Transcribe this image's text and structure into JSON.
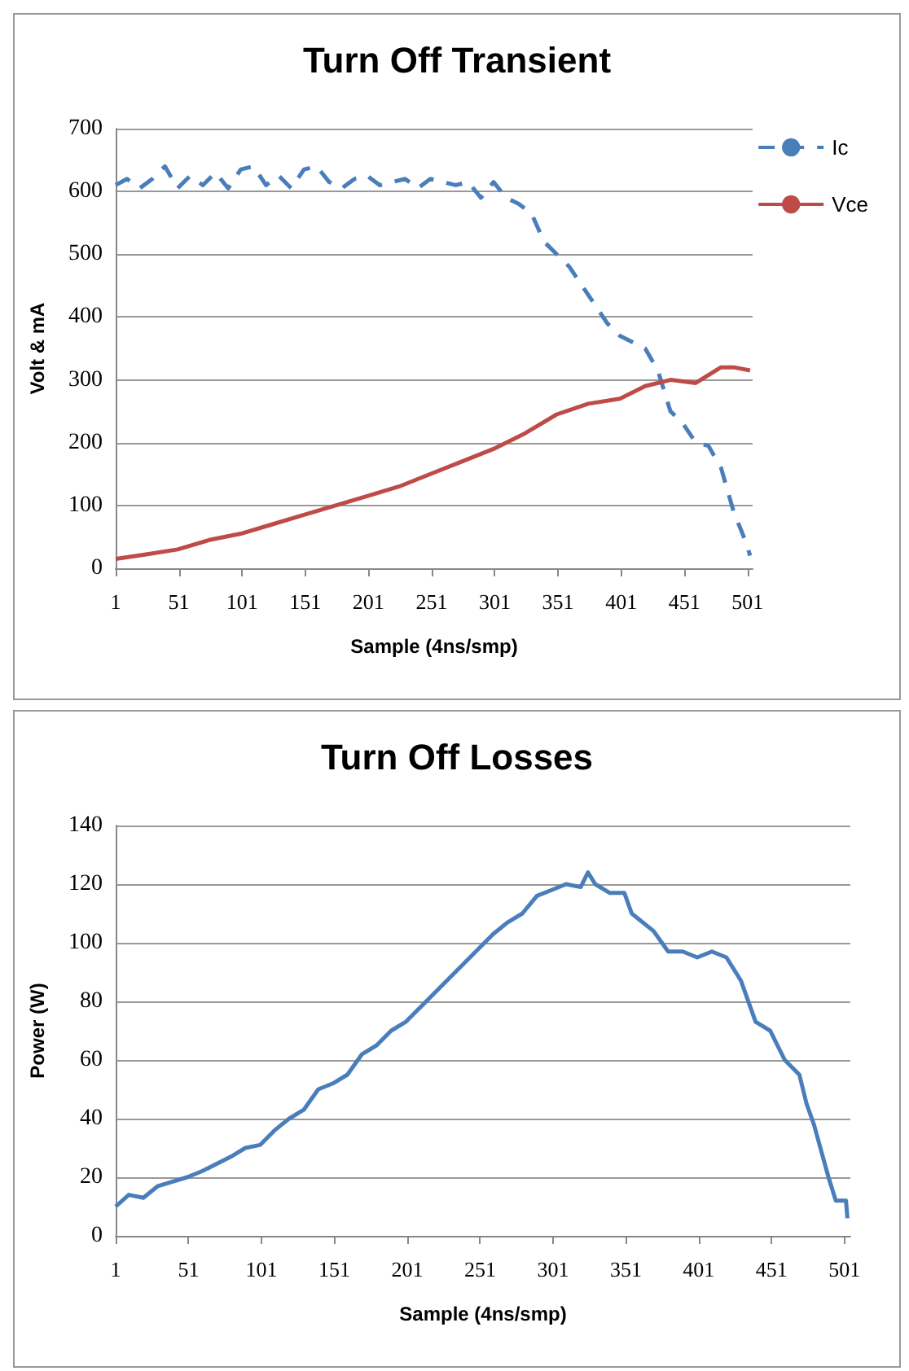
{
  "chart_data": [
    {
      "type": "line",
      "title": "Turn Off Transient",
      "xlabel": "Sample (4ns/smp)",
      "ylabel": "Volt & mA",
      "xlim": [
        1,
        505
      ],
      "xticks": [
        1,
        51,
        101,
        151,
        201,
        251,
        301,
        351,
        401,
        451,
        501
      ],
      "ylim": [
        0,
        700
      ],
      "yticks": [
        0,
        100,
        200,
        300,
        400,
        500,
        600,
        700
      ],
      "grid": "y",
      "legend": "top right",
      "marker": "none",
      "series": [
        {
          "name": "Ic",
          "color": "#4a7ebb",
          "line_style": "dashed",
          "x": [
            1,
            10,
            20,
            30,
            40,
            50,
            60,
            70,
            80,
            90,
            100,
            110,
            120,
            130,
            140,
            150,
            160,
            170,
            180,
            190,
            200,
            210,
            220,
            230,
            240,
            250,
            260,
            270,
            280,
            290,
            300,
            310,
            320,
            330,
            340,
            350,
            360,
            370,
            380,
            390,
            400,
            410,
            420,
            430,
            440,
            450,
            460,
            470,
            480,
            490,
            500,
            503
          ],
          "values": [
            610,
            620,
            605,
            620,
            640,
            605,
            625,
            610,
            630,
            605,
            635,
            640,
            610,
            625,
            605,
            635,
            640,
            615,
            605,
            620,
            625,
            610,
            615,
            620,
            605,
            620,
            615,
            610,
            615,
            590,
            615,
            590,
            580,
            565,
            520,
            500,
            480,
            450,
            420,
            390,
            370,
            360,
            350,
            315,
            250,
            230,
            200,
            195,
            160,
            90,
            40,
            20
          ]
        },
        {
          "name": "Vce",
          "color": "#be4b48",
          "line_style": "solid",
          "x": [
            1,
            25,
            50,
            75,
            100,
            125,
            150,
            175,
            200,
            225,
            250,
            275,
            300,
            325,
            350,
            375,
            400,
            420,
            440,
            460,
            480,
            490,
            503
          ],
          "values": [
            15,
            22,
            30,
            45,
            55,
            70,
            85,
            100,
            115,
            130,
            150,
            170,
            190,
            215,
            245,
            262,
            270,
            290,
            300,
            295,
            320,
            320,
            315
          ]
        }
      ]
    },
    {
      "type": "line",
      "title": "Turn Off Losses",
      "xlabel": "Sample (4ns/smp)",
      "ylabel": "Power (W)",
      "xlim": [
        1,
        505
      ],
      "xticks": [
        1,
        51,
        101,
        151,
        201,
        251,
        301,
        351,
        401,
        451,
        501
      ],
      "ylim": [
        0,
        140
      ],
      "yticks": [
        0,
        20,
        40,
        60,
        80,
        100,
        120,
        140
      ],
      "grid": "y",
      "marker": "none",
      "line_style": "solid",
      "series": [
        {
          "color": "#4a7ebb",
          "x": [
            1,
            10,
            20,
            30,
            50,
            60,
            80,
            90,
            100,
            110,
            120,
            130,
            140,
            150,
            160,
            170,
            180,
            190,
            200,
            210,
            220,
            230,
            240,
            250,
            260,
            270,
            280,
            290,
            300,
            310,
            320,
            325,
            330,
            340,
            350,
            355,
            360,
            370,
            380,
            390,
            400,
            410,
            420,
            430,
            440,
            450,
            460,
            470,
            475,
            480,
            490,
            495,
            502,
            503
          ],
          "values": [
            10,
            14,
            13,
            17,
            20,
            22,
            27,
            30,
            31,
            36,
            40,
            43,
            50,
            52,
            55,
            62,
            65,
            70,
            73,
            78,
            83,
            88,
            93,
            98,
            103,
            107,
            110,
            116,
            118,
            120,
            119,
            124,
            120,
            117,
            117,
            110,
            108,
            104,
            97,
            97,
            95,
            97,
            95,
            87,
            73,
            70,
            60,
            55,
            45,
            38,
            20,
            12,
            12,
            6
          ]
        }
      ]
    }
  ]
}
